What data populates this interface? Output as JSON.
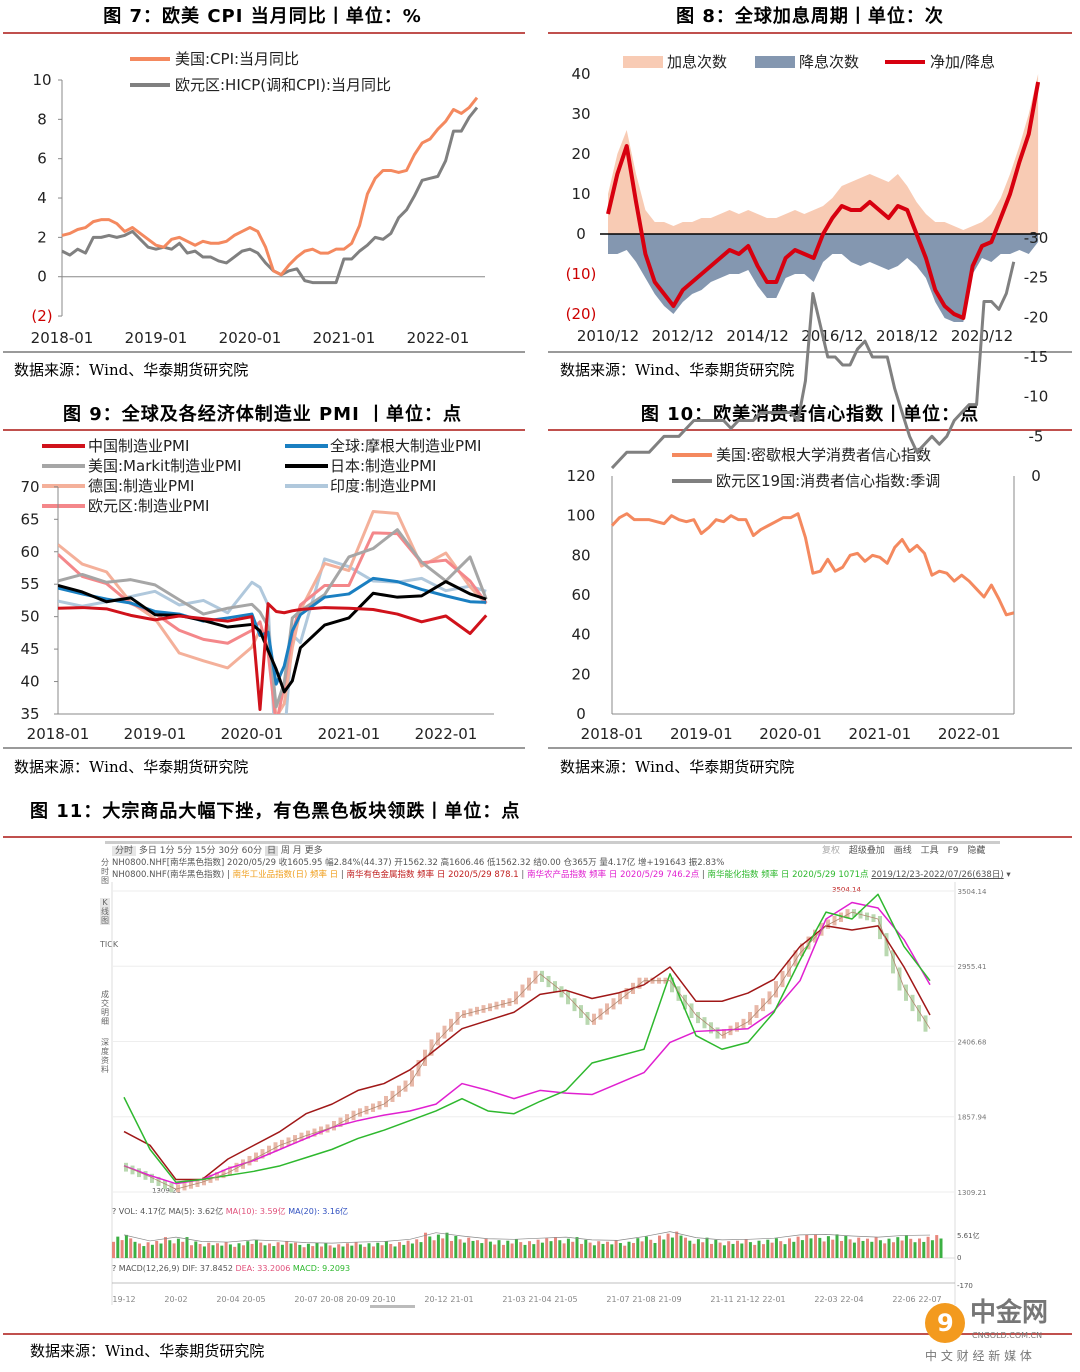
{
  "fig7": {
    "title": "图 7：欧美 CPI 当月同比丨单位：%",
    "source": "数据来源：Wind、华泰期货研究院"
  },
  "fig8": {
    "title": "图 8：全球加息周期丨单位：次",
    "source": "数据来源：Wind、华泰期货研究院"
  },
  "fig9": {
    "title": "图 9：全球及各经济体制造业 PMI 丨单位：点",
    "source": "数据来源：Wind、华泰期货研究院"
  },
  "fig10": {
    "title": "图 10：欧美消费者信心指数丨单位：点",
    "source": "数据来源：Wind、华泰期货研究院"
  },
  "fig11": {
    "title": "图 11：大宗商品大幅下挫，有色黑色板块领跌丨单位：点",
    "source": "数据来源：Wind、华泰期货研究院",
    "toolbar": [
      "分时",
      "多日",
      "1分",
      "5分",
      "15分",
      "30分",
      "60分",
      "日",
      "周",
      "月",
      "更多"
    ],
    "toolbar_right": [
      "复权",
      "超级叠加",
      "画线",
      "工具",
      "F9",
      "隐藏"
    ],
    "side_tabs": [
      "分时图",
      "K线图",
      "TICK",
      "成交明细",
      "深度资料"
    ],
    "quote_line": "NH0800.NHF[南华黑色指数]  2020/05/29  收1605.95  幅2.84%(44.37)  开1562.32  高1606.46  低1562.32  结0.00  仓365万  量4.17亿  增+191643  振2.83%",
    "legend_line": {
      "main": "NH0800.NHF(南华黑色指数)",
      "s1": "南华工业品指数(日) 频率 日",
      "s2": "南华有色金属指数 频率 日 2020/5/29 878.1",
      "s3": "南华农产品指数 频率 日 2020/5/29 746.2点",
      "s4": "南华能化指数 频率 日 2020/5/29 1071点",
      "range": "2019/12/23-2022/07/26(638日)"
    },
    "vol_line": {
      "a": "? VOL: 4.17亿 MA(5): 3.62亿",
      "b": "MA(10): 3.59亿",
      "c": "MA(20): 3.16亿"
    },
    "macd_line": {
      "a": "? MACD(12,26,9) DIF: 37.8452",
      "b": "DEA: 33.2006",
      "c": "MACD: 9.2093"
    },
    "vol_ticks": [
      "5.61亿",
      "0"
    ],
    "macd_ticks": [
      "-170"
    ],
    "marks": {
      "high": "3504.14",
      "low": "1309.21"
    }
  },
  "watermark": {
    "name": "中金网",
    "domain": "CNGOLD.COM.CN",
    "slogan": "中 文 财 经 新 媒 体"
  },
  "colors": {
    "title_rule": "#c0504d",
    "up": "#e8867c",
    "down": "#3cb043"
  },
  "chart_data": [
    {
      "id": "fig7",
      "type": "line",
      "start": "2018-01",
      "step_months": 1,
      "yticks": [
        "10",
        "8",
        "6",
        "4",
        "2",
        "0",
        "(2)"
      ],
      "ylim": [
        -2,
        10
      ],
      "xticks": [
        "2018-01",
        "2019-01",
        "2020-01",
        "2021-01",
        "2022-01"
      ],
      "series": [
        {
          "name": "美国:CPI:当月同比",
          "color": "#f4895f",
          "values": [
            2.1,
            2.2,
            2.4,
            2.5,
            2.8,
            2.9,
            2.9,
            2.7,
            2.3,
            2.5,
            2.2,
            1.9,
            1.6,
            1.5,
            1.9,
            2.0,
            1.8,
            1.6,
            1.8,
            1.7,
            1.7,
            1.8,
            2.1,
            2.3,
            2.5,
            2.3,
            1.5,
            0.3,
            0.1,
            0.6,
            1.0,
            1.3,
            1.4,
            1.2,
            1.2,
            1.4,
            1.4,
            1.7,
            2.6,
            4.2,
            5.0,
            5.4,
            5.4,
            5.3,
            5.4,
            6.2,
            6.8,
            7.0,
            7.5,
            7.9,
            8.5,
            8.3,
            8.6,
            9.1
          ]
        },
        {
          "name": "欧元区:HICP(调和CPI):当月同比",
          "color": "#808080",
          "values": [
            1.3,
            1.1,
            1.4,
            1.2,
            2.0,
            2.0,
            2.1,
            2.0,
            2.1,
            2.3,
            1.9,
            1.5,
            1.4,
            1.5,
            1.4,
            1.7,
            1.2,
            1.3,
            1.0,
            1.0,
            0.8,
            0.7,
            1.0,
            1.3,
            1.4,
            1.2,
            0.7,
            0.3,
            0.1,
            0.3,
            0.4,
            -0.2,
            -0.3,
            -0.3,
            -0.3,
            -0.3,
            0.9,
            0.9,
            1.3,
            1.6,
            2.0,
            1.9,
            2.2,
            3.0,
            3.4,
            4.1,
            4.9,
            5.0,
            5.1,
            5.9,
            7.4,
            7.4,
            8.1,
            8.6
          ]
        }
      ]
    },
    {
      "id": "fig8",
      "type": "area",
      "start": "2010-12",
      "step_months": 3,
      "yticks": [
        "40",
        "30",
        "20",
        "10",
        "0",
        "(10)",
        "(20)"
      ],
      "ylim": [
        -20,
        40
      ],
      "xticks": [
        "2010/12",
        "2012/12",
        "2014/12",
        "2016/12",
        "2018/12",
        "2020/12"
      ],
      "series": [
        {
          "name": "加息次数",
          "color": "#f8cbb4",
          "values": [
            10,
            20,
            26,
            15,
            6,
            3,
            3,
            2,
            3,
            3,
            4,
            4,
            5,
            6,
            5,
            6,
            5,
            4,
            4,
            5,
            6,
            5,
            6,
            7,
            9,
            12,
            13,
            14,
            15,
            14,
            13,
            15,
            12,
            8,
            5,
            3,
            3,
            2,
            1,
            2,
            3,
            5,
            9,
            15,
            22,
            30,
            40
          ]
        },
        {
          "name": "降息次数",
          "color": "#8497b0",
          "values": [
            5,
            5,
            4,
            7,
            11,
            15,
            18,
            20,
            17,
            15,
            14,
            12,
            11,
            10,
            10,
            9,
            13,
            16,
            16,
            11,
            10,
            10,
            12,
            7,
            5,
            5,
            7,
            8,
            7,
            8,
            9,
            8,
            6,
            8,
            11,
            17,
            21,
            22,
            22,
            10,
            6,
            7,
            5,
            5,
            4,
            5,
            2
          ]
        },
        {
          "name": "净加/降息",
          "color": "#d7000f",
          "values": [
            5,
            15,
            22,
            8,
            -5,
            -12,
            -15,
            -18,
            -14,
            -12,
            -10,
            -8,
            -6,
            -4,
            -5,
            -3,
            -8,
            -12,
            -12,
            -6,
            -4,
            -5,
            -6,
            0,
            4,
            7,
            6,
            6,
            8,
            6,
            4,
            7,
            6,
            0,
            -6,
            -14,
            -18,
            -20,
            -21,
            -8,
            -3,
            -2,
            4,
            10,
            18,
            25,
            38
          ]
        }
      ]
    },
    {
      "id": "fig9",
      "type": "line",
      "x": [
        "2018-01",
        "2018-04",
        "2018-07",
        "2018-10",
        "2019-01",
        "2019-04",
        "2019-07",
        "2019-10",
        "2020-01",
        "2020-02",
        "2020-03",
        "2020-04",
        "2020-05",
        "2020-06",
        "2020-07",
        "2020-10",
        "2021-01",
        "2021-04",
        "2021-07",
        "2021-10",
        "2022-01",
        "2022-04",
        "2022-06"
      ],
      "yticks": [
        "70",
        "65",
        "60",
        "55",
        "50",
        "45",
        "40",
        "35"
      ],
      "ylim": [
        35,
        70
      ],
      "xticks": [
        "2018-01",
        "2019-01",
        "2020-01",
        "2021-01",
        "2022-01"
      ],
      "series": [
        {
          "name": "中国制造业PMI",
          "color": "#d0121b",
          "values": [
            51.3,
            51.4,
            51.2,
            50.2,
            49.5,
            50.1,
            49.7,
            49.3,
            50.0,
            35.7,
            52.0,
            50.8,
            50.6,
            50.9,
            51.1,
            51.4,
            51.3,
            51.1,
            50.4,
            49.2,
            50.1,
            47.4,
            50.2
          ]
        },
        {
          "name": "全球:摩根大制造业PMI",
          "color": "#1a7fc1",
          "values": [
            54.4,
            53.5,
            52.7,
            52.1,
            50.8,
            50.4,
            49.3,
            49.8,
            50.4,
            47.1,
            47.6,
            39.6,
            42.4,
            47.8,
            50.3,
            53.0,
            53.5,
            55.9,
            55.4,
            54.2,
            53.2,
            52.3,
            52.2
          ]
        },
        {
          "name": "美国:Markit制造业PMI",
          "color": "#a6a6a6",
          "values": [
            55.5,
            56.5,
            55.3,
            55.7,
            54.9,
            52.6,
            50.4,
            51.3,
            51.9,
            50.7,
            48.5,
            36.1,
            39.8,
            49.8,
            50.9,
            53.4,
            59.2,
            60.5,
            63.4,
            58.4,
            55.5,
            59.2,
            52.7
          ]
        },
        {
          "name": "日本:制造业PMI",
          "color": "#000000",
          "values": [
            54.8,
            53.8,
            52.3,
            52.9,
            50.3,
            50.2,
            49.4,
            48.4,
            48.8,
            47.8,
            44.8,
            41.9,
            38.4,
            40.1,
            45.2,
            48.7,
            49.8,
            53.6,
            53.0,
            53.2,
            55.4,
            53.5,
            52.7
          ]
        },
        {
          "name": "德国:制造业PMI",
          "color": "#f4b09a",
          "values": [
            61.1,
            58.1,
            56.9,
            52.2,
            49.7,
            44.4,
            43.2,
            42.1,
            45.3,
            48.0,
            45.4,
            34.5,
            36.6,
            45.2,
            51.0,
            58.2,
            57.1,
            66.2,
            65.9,
            57.8,
            59.8,
            54.6,
            52.0
          ]
        },
        {
          "name": "印度:制造业PMI",
          "color": "#b0c8dc",
          "values": [
            52.4,
            51.6,
            52.3,
            53.1,
            53.9,
            51.8,
            52.5,
            50.6,
            55.3,
            54.5,
            51.8,
            27.4,
            30.8,
            47.2,
            46.0,
            58.9,
            57.7,
            55.5,
            55.3,
            55.9,
            54.0,
            54.7,
            53.9
          ]
        },
        {
          "name": "欧元区:制造业PMI",
          "color": "#f4878a",
          "values": [
            59.6,
            56.2,
            55.1,
            52.0,
            50.5,
            47.9,
            46.5,
            45.9,
            47.9,
            49.2,
            44.5,
            33.4,
            39.4,
            47.4,
            51.8,
            54.8,
            54.8,
            62.9,
            62.8,
            58.3,
            58.7,
            55.5,
            52.1
          ]
        }
      ]
    },
    {
      "id": "fig10",
      "type": "line",
      "start": "2018-01",
      "step_months": 1,
      "yticks_left": [
        "120",
        "100",
        "80",
        "60",
        "40",
        "20",
        "0"
      ],
      "ylim_left": [
        0,
        120
      ],
      "yticks_right": [
        "0",
        "-5",
        "-10",
        "-15",
        "-20",
        "-25",
        "-30"
      ],
      "ylim_right": [
        -30,
        0
      ],
      "xticks": [
        "2018-01",
        "2019-01",
        "2020-01",
        "2021-01",
        "2022-01"
      ],
      "series": [
        {
          "name": "美国:密歇根大学消费者信心指数",
          "axis": "left",
          "color": "#f4895f",
          "values": [
            95,
            99,
            101,
            98,
            98,
            98,
            97,
            96,
            100,
            98,
            97,
            98,
            91,
            94,
            98,
            97,
            100,
            98,
            98,
            90,
            93,
            95,
            97,
            99,
            99,
            101,
            89,
            71,
            72,
            78,
            72,
            74,
            80,
            81,
            77,
            80,
            79,
            76,
            84,
            88,
            82,
            85,
            81,
            70,
            72,
            71,
            67,
            70,
            67,
            63,
            59,
            65,
            58,
            50,
            51
          ]
        },
        {
          "name": "欧元区19国:消费者信心指数:季调",
          "axis": "right",
          "color": "#808080",
          "values": [
            -1,
            -2,
            -3,
            -3,
            -3,
            -3,
            -4,
            -5,
            -5,
            -5,
            -6,
            -7,
            -7,
            -7,
            -7,
            -7,
            -6,
            -7,
            -7,
            -7,
            -8,
            -8,
            -8,
            -8,
            -8,
            -7,
            -12,
            -23,
            -19,
            -15,
            -15,
            -14,
            -14,
            -16,
            -17,
            -15,
            -15,
            -15,
            -11,
            -8,
            -5,
            -3,
            -4,
            -5,
            -4,
            -5,
            -7,
            -8,
            -9,
            -9,
            -22,
            -22,
            -21,
            -23,
            -27
          ]
        }
      ]
    },
    {
      "id": "fig11",
      "type": "line",
      "start": "2019-12",
      "step_months": 1,
      "yticks": [
        "3504.14",
        "2955.41",
        "2406.68",
        "1857.94",
        "1309.21"
      ],
      "ylim": [
        1309.21,
        3504.14
      ],
      "xticks": [
        "19-12",
        "20-02",
        "20-04",
        "20-05",
        "20-07",
        "20-08",
        "20-09",
        "20-10",
        "20-12",
        "21-01",
        "21-03",
        "21-04",
        "21-05",
        "21-07",
        "21-08",
        "21-09",
        "21-11",
        "21-12",
        "22-01",
        "22-03",
        "22-04",
        "22-06",
        "22-07"
      ],
      "series": [
        {
          "name": "南华黑色指数",
          "color": "#c9a48b",
          "values": [
            1500,
            1420,
            1330,
            1380,
            1450,
            1550,
            1650,
            1720,
            1780,
            1880,
            1950,
            2100,
            2400,
            2600,
            2650,
            2700,
            2900,
            2750,
            2550,
            2700,
            2850,
            2850,
            2600,
            2450,
            2550,
            2750,
            3050,
            3250,
            3350,
            3300,
            2800,
            2500
          ]
        },
        {
          "name": "南华有色金属指数",
          "color": "#a01818",
          "values": [
            1750,
            1650,
            1400,
            1400,
            1550,
            1650,
            1750,
            1880,
            1950,
            2050,
            2100,
            2200,
            2350,
            2500,
            2560,
            2620,
            2750,
            2780,
            2720,
            2760,
            2820,
            2950,
            2700,
            2700,
            2760,
            2860,
            3100,
            3250,
            3220,
            3250,
            2950,
            2600
          ]
        },
        {
          "name": "南华农产品指数",
          "color": "#e020d0",
          "values": [
            1500,
            1430,
            1370,
            1400,
            1480,
            1540,
            1620,
            1700,
            1780,
            1830,
            1870,
            1900,
            1950,
            2100,
            2050,
            1990,
            2050,
            2030,
            2020,
            2100,
            2180,
            2400,
            2480,
            2490,
            2500,
            2630,
            2850,
            3300,
            3420,
            3380,
            3150,
            2820
          ]
        },
        {
          "name": "南华能化指数",
          "color": "#2eb82e",
          "values": [
            2000,
            1620,
            1380,
            1400,
            1430,
            1460,
            1500,
            1560,
            1620,
            1700,
            1760,
            1830,
            1900,
            1990,
            1900,
            1880,
            1970,
            2050,
            2250,
            2300,
            2350,
            2900,
            2450,
            2350,
            2400,
            2620,
            3000,
            3350,
            3300,
            3480,
            3100,
            2850
          ]
        }
      ],
      "volume": [
        4.2,
        3.1,
        3.8,
        3.0,
        2.9,
        3.3,
        3.1,
        2.8,
        2.7,
        2.9,
        3.0,
        3.4,
        4.6,
        4.0,
        3.5,
        3.4,
        3.6,
        3.8,
        3.3,
        3.2,
        3.9,
        4.8,
        3.7,
        3.3,
        3.4,
        3.6,
        4.2,
        4.3,
        4.0,
        3.8,
        4.1,
        4.17
      ]
    }
  ]
}
